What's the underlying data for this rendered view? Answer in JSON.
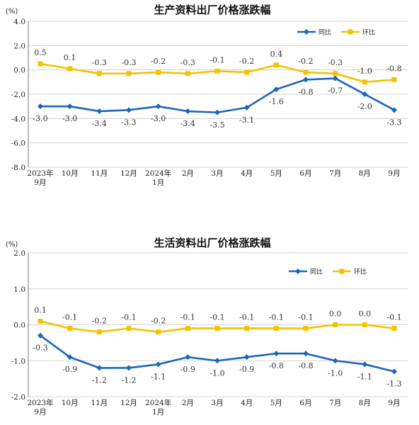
{
  "colors": {
    "yoy": "#1e66b8",
    "mom": "#f3c300",
    "grid": "#c8c8c8",
    "axis": "#555555"
  },
  "chart_data": [
    {
      "type": "line",
      "title": "生产资料出厂价格涨跌幅",
      "unit_label": "(%)",
      "ylim": [
        -8.0,
        4.0
      ],
      "yticks": [
        "4.0",
        "2.0",
        "0.0",
        "-2.0",
        "-4.0",
        "-6.0",
        "-8.0"
      ],
      "ytick_values": [
        4,
        2,
        0,
        -2,
        -4,
        -6,
        -8
      ],
      "categories": [
        [
          "2023年",
          "9月"
        ],
        [
          "10月"
        ],
        [
          "11月"
        ],
        [
          "12月"
        ],
        [
          "2024年",
          "1月"
        ],
        [
          "2月"
        ],
        [
          "3月"
        ],
        [
          "4月"
        ],
        [
          "5月"
        ],
        [
          "6月"
        ],
        [
          "7月"
        ],
        [
          "8月"
        ],
        [
          "9月"
        ]
      ],
      "grid": "y-major",
      "legend_position": "top-right",
      "series": [
        {
          "name": "同比",
          "key": "yoy",
          "marker": "diamond",
          "values": [
            -3.0,
            -3.0,
            -3.4,
            -3.3,
            -3.0,
            -3.4,
            -3.5,
            -3.1,
            -1.6,
            -0.8,
            -0.7,
            -2.0,
            -3.3
          ],
          "labels": [
            "-3.0",
            "-3.0",
            "-3.4",
            "-3.3",
            "-3.0",
            "-3.4",
            "-3.5",
            "-3.1",
            "-1.6",
            "-0.8",
            "-0.7",
            "-2.0",
            "-3.3"
          ]
        },
        {
          "name": "环比",
          "key": "mom",
          "marker": "square",
          "values": [
            0.5,
            0.1,
            -0.3,
            -0.3,
            -0.2,
            -0.3,
            -0.1,
            -0.2,
            0.4,
            -0.2,
            -0.3,
            -1.0,
            -0.8
          ],
          "labels": [
            "0.5",
            "0.1",
            "-0.3",
            "-0.3",
            "-0.2",
            "-0.3",
            "-0.1",
            "-0.2",
            "0.4",
            "-0.2",
            "-0.3",
            "-1.0",
            "-0.8"
          ]
        }
      ]
    },
    {
      "type": "line",
      "title": "生活资料出厂价格涨跌幅",
      "unit_label": "(%)",
      "ylim": [
        -2.0,
        2.0
      ],
      "yticks": [
        "2.0",
        "1.0",
        "0.0",
        "-1.0",
        "-2.0"
      ],
      "ytick_values": [
        2,
        1,
        0,
        -1,
        -2
      ],
      "categories": [
        [
          "2023年",
          "9月"
        ],
        [
          "10月"
        ],
        [
          "11月"
        ],
        [
          "12月"
        ],
        [
          "2024年",
          "1月"
        ],
        [
          "2月"
        ],
        [
          "3月"
        ],
        [
          "4月"
        ],
        [
          "5月"
        ],
        [
          "6月"
        ],
        [
          "7月"
        ],
        [
          "8月"
        ],
        [
          "9月"
        ]
      ],
      "grid": "y-major",
      "legend_position": "top-right",
      "series": [
        {
          "name": "同比",
          "key": "yoy",
          "marker": "diamond",
          "values": [
            -0.3,
            -0.9,
            -1.2,
            -1.2,
            -1.1,
            -0.9,
            -1.0,
            -0.9,
            -0.8,
            -0.8,
            -1.0,
            -1.1,
            -1.3
          ],
          "labels": [
            "-0.3",
            "-0.9",
            "-1.2",
            "-1.2",
            "-1.1",
            "-0.9",
            "-1.0",
            "-0.9",
            "-0.8",
            "-0.8",
            "-1.0",
            "-1.1",
            "-1.3"
          ]
        },
        {
          "name": "环比",
          "key": "mom",
          "marker": "square",
          "values": [
            0.1,
            -0.1,
            -0.2,
            -0.1,
            -0.2,
            -0.1,
            -0.1,
            -0.1,
            -0.1,
            -0.1,
            0.0,
            0.0,
            -0.1
          ],
          "labels": [
            "0.1",
            "-0.1",
            "-0.2",
            "-0.1",
            "-0.2",
            "-0.1",
            "-0.1",
            "-0.1",
            "-0.1",
            "-0.1",
            "0.0",
            "0.0",
            "-0.1"
          ]
        }
      ]
    }
  ]
}
